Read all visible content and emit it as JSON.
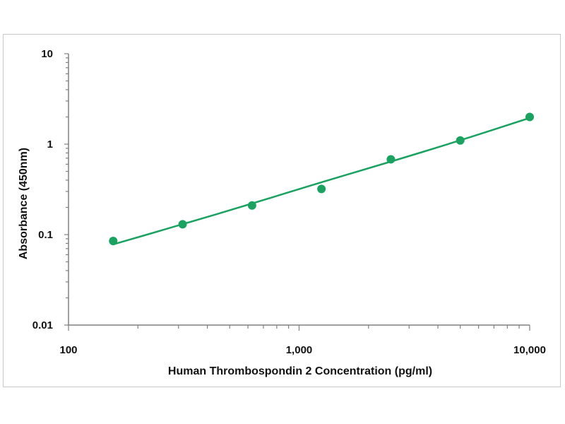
{
  "chart_data": {
    "type": "scatter",
    "title": "",
    "xlabel": "Human Thrombospondin 2 Concentration (pg/ml)",
    "ylabel": "Absorbance (450nm)",
    "x_scale": "log",
    "y_scale": "log",
    "xlim": [
      100,
      10000
    ],
    "ylim": [
      0.01,
      10
    ],
    "x_ticks": [
      {
        "value": 100,
        "label": "100"
      },
      {
        "value": 1000,
        "label": "1,000"
      },
      {
        "value": 10000,
        "label": "10,000"
      }
    ],
    "y_ticks": [
      {
        "value": 0.01,
        "label": "0.01"
      },
      {
        "value": 0.1,
        "label": "0.1"
      },
      {
        "value": 1,
        "label": "1"
      },
      {
        "value": 10,
        "label": "10"
      }
    ],
    "grid": false,
    "legend": "none",
    "series": [
      {
        "x": [
          156.25,
          312.5,
          625,
          1250,
          2500,
          5000,
          10000
        ],
        "y": [
          0.085,
          0.13,
          0.21,
          0.32,
          0.68,
          1.1,
          2.0
        ],
        "fit_line": [
          {
            "x": 156.25,
            "y": 0.078
          },
          {
            "x": 312.5,
            "y": 0.13
          },
          {
            "x": 625,
            "y": 0.22
          },
          {
            "x": 1250,
            "y": 0.38
          },
          {
            "x": 2500,
            "y": 0.64
          },
          {
            "x": 5000,
            "y": 1.1
          },
          {
            "x": 10000,
            "y": 1.95
          }
        ],
        "color": "#1aa260"
      }
    ]
  }
}
